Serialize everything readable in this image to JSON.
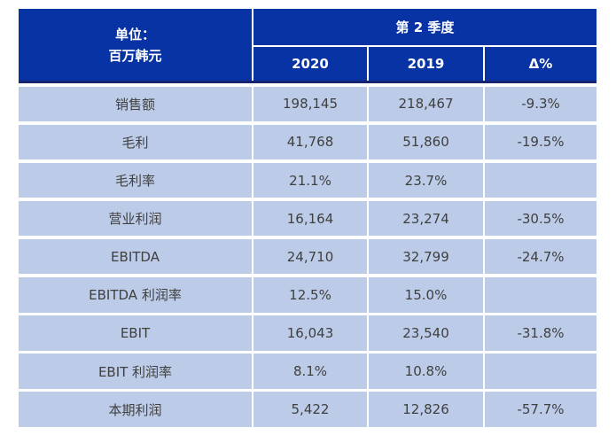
{
  "colors": {
    "header_bg": "#0833A4",
    "header_border": "#17256F",
    "header_text": "#FFFFFF",
    "row_bg": "#BCCBE7",
    "body_text": "#3F3F3F",
    "page_bg": "#FFFFFF"
  },
  "header": {
    "unit_line1": "单位：",
    "unit_line2": "百万韩元",
    "quarter": "第 2 季度",
    "col_2020": "2020",
    "col_2019": "2019",
    "col_delta": "Δ%"
  },
  "chart_data": {
    "type": "table",
    "title": "第 2 季度",
    "unit_label": "单位：百万韩元",
    "columns": [
      "2020",
      "2019",
      "Δ%"
    ],
    "rows": [
      {
        "label": "销售额",
        "v2020": "198,145",
        "v2019": "218,467",
        "delta": "-9.3%"
      },
      {
        "label": "毛利",
        "v2020": "41,768",
        "v2019": "51,860",
        "delta": "-19.5%"
      },
      {
        "label": "毛利率",
        "v2020": "21.1%",
        "v2019": "23.7%",
        "delta": ""
      },
      {
        "label": "营业利润",
        "v2020": "16,164",
        "v2019": "23,274",
        "delta": "-30.5%"
      },
      {
        "label": "EBITDA",
        "v2020": "24,710",
        "v2019": "32,799",
        "delta": "-24.7%"
      },
      {
        "label": "EBITDA 利润率",
        "v2020": "12.5%",
        "v2019": "15.0%",
        "delta": ""
      },
      {
        "label": "EBIT",
        "v2020": "16,043",
        "v2019": "23,540",
        "delta": "-31.8%"
      },
      {
        "label": "EBIT 利润率",
        "v2020": "8.1%",
        "v2019": "10.8%",
        "delta": ""
      },
      {
        "label": "本期利润",
        "v2020": "5,422",
        "v2019": "12,826",
        "delta": "-57.7%"
      }
    ]
  }
}
